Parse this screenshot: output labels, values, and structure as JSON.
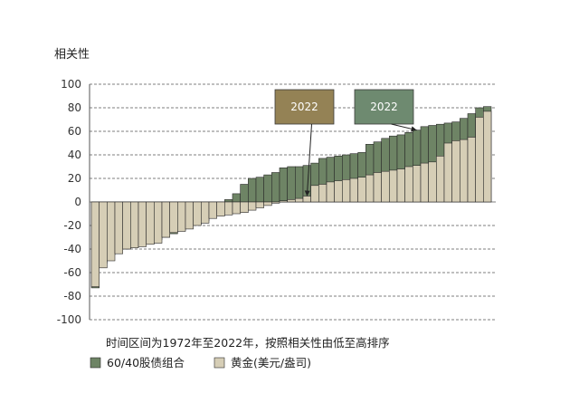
{
  "chart_data": {
    "type": "bar",
    "title": "",
    "ylabel": "相关性",
    "xlabel": "时间区间为1972年至2022年，按照相关性由低至高排序",
    "ylim": [
      -100,
      100
    ],
    "yticks": [
      100,
      80,
      60,
      40,
      20,
      0,
      -20,
      -40,
      -60,
      -80,
      -100
    ],
    "grid": "horizontal dashed",
    "legend_position": "bottom-left",
    "colors": {
      "stock_bond": "#6e8465",
      "gold": "#d6ceb6",
      "annot_gold": "#948255",
      "annot_stock_bond": "#6e8a70",
      "grid": "#555555"
    },
    "series": [
      {
        "name": "60/40股债组合",
        "values": [
          -73,
          -52,
          -45,
          -41,
          -40,
          -38,
          -36,
          -34,
          -32,
          -30,
          -27,
          -24,
          -22,
          -19,
          -16,
          -12,
          -6,
          2,
          7,
          15,
          20,
          21,
          23,
          25,
          29,
          30,
          30,
          31,
          33,
          37,
          38,
          39,
          40,
          41,
          42,
          49,
          51,
          54,
          56,
          57,
          59,
          61,
          64,
          65,
          66,
          67,
          68,
          71,
          75,
          80,
          81
        ]
      },
      {
        "name": "黄金(美元/盎司)",
        "values": [
          -72,
          -56,
          -50,
          -44,
          -40,
          -39,
          -38,
          -36,
          -35,
          -30,
          -26,
          -25,
          -23,
          -20,
          -18,
          -14,
          -12,
          -11,
          -10,
          -9,
          -7,
          -5,
          -3,
          -1,
          1,
          2,
          3,
          5,
          14,
          15,
          17,
          18,
          19,
          20,
          21,
          23,
          25,
          26,
          27,
          28,
          30,
          31,
          33,
          34,
          39,
          50,
          52,
          53,
          55,
          72,
          77
        ]
      }
    ],
    "annotations": [
      {
        "label": "2022",
        "series": "黄金(美元/盎司)",
        "index": 27,
        "color": "#948255"
      },
      {
        "label": "2022",
        "series": "60/40股债组合",
        "index": 41,
        "color": "#6e8a70"
      }
    ]
  }
}
